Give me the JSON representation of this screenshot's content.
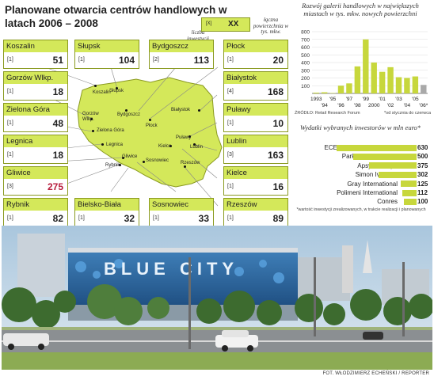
{
  "title": "Planowane otwarcia centrów handlowych w latach 2006 – 2008",
  "legend": {
    "sample_count": "[X]",
    "sample_area": "XX",
    "count_label": "liczba inwestycji",
    "area_label": "łączna powierzchnia w tys. mkw."
  },
  "boxes": [
    {
      "name": "Koszalin",
      "count": "[1]",
      "value": "51"
    },
    {
      "name": "Słupsk",
      "count": "[1]",
      "value": "104"
    },
    {
      "name": "Bydgoszcz",
      "count": "[2]",
      "value": "113"
    },
    {
      "name": "Płock",
      "count": "[1]",
      "value": "20"
    },
    {
      "name": "Gorzów Wlkp.",
      "count": "[1]",
      "value": "18"
    },
    {
      "name": "Białystok",
      "count": "[4]",
      "value": "168"
    },
    {
      "name": "Zielona Góra",
      "count": "[1]",
      "value": "48"
    },
    {
      "name": "Puławy",
      "count": "[1]",
      "value": "10"
    },
    {
      "name": "Legnica",
      "count": "[1]",
      "value": "18"
    },
    {
      "name": "Lublin",
      "count": "[3]",
      "value": "163"
    },
    {
      "name": "Gliwice",
      "count": "[3]",
      "value": "275"
    },
    {
      "name": "Kielce",
      "count": "[1]",
      "value": "16"
    },
    {
      "name": "Rybnik",
      "count": "[1]",
      "value": "82"
    },
    {
      "name": "Bielsko-Biała",
      "count": "[1]",
      "value": "32"
    },
    {
      "name": "Sosnowiec",
      "count": "[1]",
      "value": "33"
    },
    {
      "name": "Rzeszów",
      "count": "[1]",
      "value": "89"
    }
  ],
  "map_labels": [
    "Koszalin",
    "Słupsk",
    "Gorzów Wlkp.",
    "Bydgoszcz",
    "Białystok",
    "Zielona Góra",
    "Płock",
    "Puławy",
    "Legnica",
    "Lublin",
    "Kielce",
    "Gliwice",
    "Rybnik",
    "Sosnowiec",
    "Rzeszów"
  ],
  "colors": {
    "accent": "#d4e85a",
    "border": "#8a9a20",
    "bar": "#c7d73c",
    "highlight_value": "#b71c3c",
    "last_bar": "#a9a9a9"
  },
  "chart_data": [
    {
      "type": "bar",
      "title": "Rozwój galerii handlowych w największych miastach w tys. mkw. nowych powierzchni",
      "categories": [
        "1993",
        "94",
        "95",
        "96",
        "97",
        "98",
        "99",
        "2000",
        "01",
        "02",
        "03",
        "04",
        "05",
        "06*"
      ],
      "x_tick_labels_top": [
        "1993",
        "'95",
        "'97",
        "'99",
        "'01",
        "'03",
        "'05"
      ],
      "x_tick_labels_bottom": [
        "'94",
        "'96",
        "'98",
        "2000",
        "'02",
        "'04",
        "'06*"
      ],
      "values": [
        10,
        15,
        5,
        100,
        130,
        350,
        700,
        400,
        280,
        340,
        210,
        200,
        220,
        110
      ],
      "ylim": [
        0,
        800
      ],
      "yticks": [
        "100",
        "200",
        "300",
        "400",
        "500",
        "600",
        "700",
        "800"
      ],
      "source": "ŹRÓDŁO: Retail Research Forum",
      "footnote": "*od stycznia do czerwca",
      "grid": true
    },
    {
      "type": "bar",
      "orientation": "horizontal",
      "title": "Wydatki wybranych inwestorów w mln euro*",
      "categories": [
        "ECE Project Management",
        "Parkridge CE Retail",
        "Apsys Groupe",
        "Simon Ivanhoe",
        "Gray International",
        "Polimeni International",
        "Conres"
      ],
      "values": [
        630,
        500,
        375,
        302,
        125,
        112,
        100
      ],
      "note": "*wartość inwestycji zrealizowanych, w trakcie realizacji i planowanych"
    }
  ],
  "photo": {
    "sign_text": "BLUE CITY"
  },
  "credit": "FOT. WŁODZIMIERZ ECHEŃSKI / REPORTER"
}
